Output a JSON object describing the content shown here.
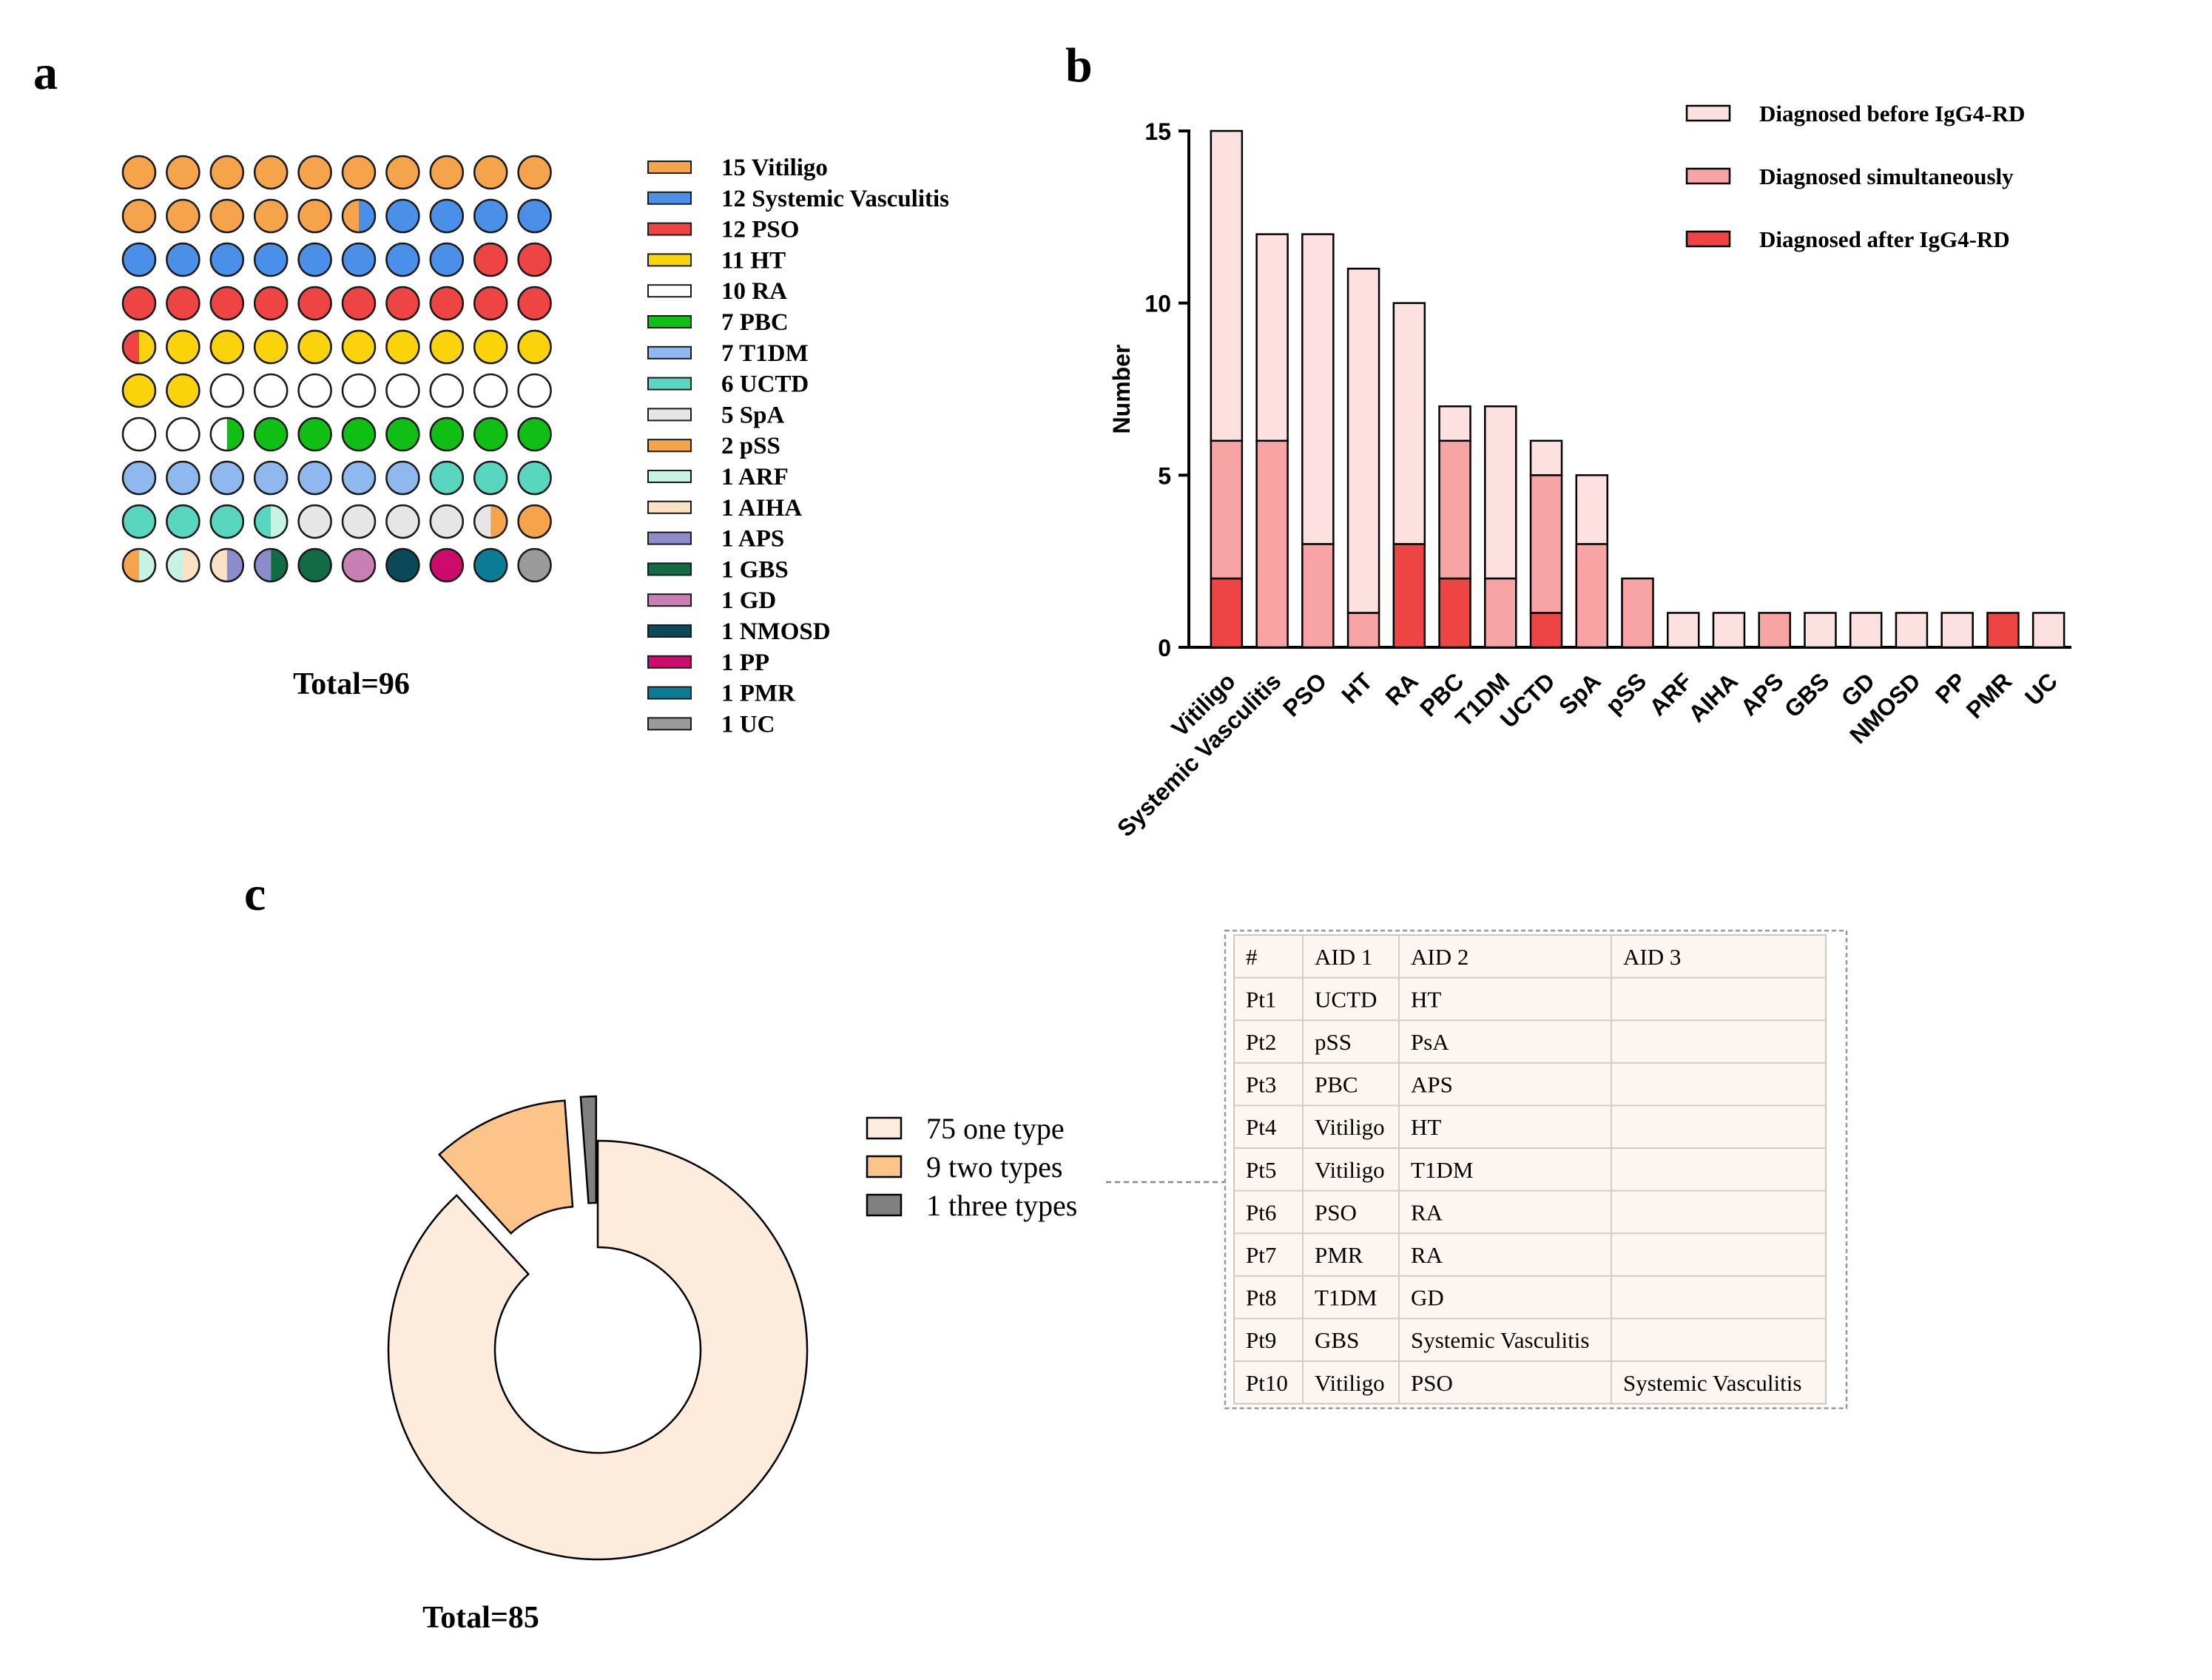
{
  "panels": {
    "a": {
      "label": "a",
      "total_label": "Total=96",
      "legend": [
        {
          "text": "15 Vitiligo",
          "color": "#f6a44c"
        },
        {
          "text": "12 Systemic Vasculitis",
          "color": "#4a90e8"
        },
        {
          "text": "12 PSO",
          "color": "#ee4444"
        },
        {
          "text": "11 HT",
          "color": "#fbd30a"
        },
        {
          "text": "10 RA",
          "color": "#ffffff"
        },
        {
          "text": "7 PBC",
          "color": "#0fbf14"
        },
        {
          "text": "7 T1DM",
          "color": "#8fb8ef"
        },
        {
          "text": "6 UCTD",
          "color": "#58d6bf"
        },
        {
          "text": "5 SpA",
          "color": "#e6e6e6"
        },
        {
          "text": "2 pSS",
          "color": "#f6a44c"
        },
        {
          "text": "1 ARF",
          "color": "#c7f3e3"
        },
        {
          "text": "1 AIHA",
          "color": "#fbe2c4"
        },
        {
          "text": "1 APS",
          "color": "#8c8ccc"
        },
        {
          "text": "1 GBS",
          "color": "#116b45"
        },
        {
          "text": "1 GD",
          "color": "#c880b4"
        },
        {
          "text": "1 NMOSD",
          "color": "#0b4858"
        },
        {
          "text": "1 PP",
          "color": "#cc0b6c"
        },
        {
          "text": "1 PMR",
          "color": "#0a7c94"
        },
        {
          "text": "1 UC",
          "color": "#9a9a9a"
        }
      ],
      "grid": [
        [
          [
            "#f6a44c"
          ],
          [
            "#f6a44c"
          ],
          [
            "#f6a44c"
          ],
          [
            "#f6a44c"
          ],
          [
            "#f6a44c"
          ],
          [
            "#f6a44c"
          ],
          [
            "#f6a44c"
          ],
          [
            "#f6a44c"
          ],
          [
            "#f6a44c"
          ],
          [
            "#f6a44c"
          ]
        ],
        [
          [
            "#f6a44c"
          ],
          [
            "#f6a44c"
          ],
          [
            "#f6a44c"
          ],
          [
            "#f6a44c"
          ],
          [
            "#f6a44c"
          ],
          [
            "#f6a44c",
            "#4a90e8"
          ],
          [
            "#4a90e8"
          ],
          [
            "#4a90e8"
          ],
          [
            "#4a90e8"
          ],
          [
            "#4a90e8"
          ]
        ],
        [
          [
            "#4a90e8"
          ],
          [
            "#4a90e8"
          ],
          [
            "#4a90e8"
          ],
          [
            "#4a90e8"
          ],
          [
            "#4a90e8"
          ],
          [
            "#4a90e8"
          ],
          [
            "#4a90e8"
          ],
          [
            "#4a90e8"
          ],
          [
            "#ee4444"
          ],
          [
            "#ee4444"
          ]
        ],
        [
          [
            "#ee4444"
          ],
          [
            "#ee4444"
          ],
          [
            "#ee4444"
          ],
          [
            "#ee4444"
          ],
          [
            "#ee4444"
          ],
          [
            "#ee4444"
          ],
          [
            "#ee4444"
          ],
          [
            "#ee4444"
          ],
          [
            "#ee4444"
          ],
          [
            "#ee4444"
          ]
        ],
        [
          [
            "#ee4444",
            "#fbd30a"
          ],
          [
            "#fbd30a"
          ],
          [
            "#fbd30a"
          ],
          [
            "#fbd30a"
          ],
          [
            "#fbd30a"
          ],
          [
            "#fbd30a"
          ],
          [
            "#fbd30a"
          ],
          [
            "#fbd30a"
          ],
          [
            "#fbd30a"
          ],
          [
            "#fbd30a"
          ]
        ],
        [
          [
            "#fbd30a"
          ],
          [
            "#fbd30a"
          ],
          [
            "#ffffff"
          ],
          [
            "#ffffff"
          ],
          [
            "#ffffff"
          ],
          [
            "#ffffff"
          ],
          [
            "#ffffff"
          ],
          [
            "#ffffff"
          ],
          [
            "#ffffff"
          ],
          [
            "#ffffff"
          ]
        ],
        [
          [
            "#ffffff"
          ],
          [
            "#ffffff"
          ],
          [
            "#ffffff",
            "#0fbf14"
          ],
          [
            "#0fbf14"
          ],
          [
            "#0fbf14"
          ],
          [
            "#0fbf14"
          ],
          [
            "#0fbf14"
          ],
          [
            "#0fbf14"
          ],
          [
            "#0fbf14"
          ],
          [
            "#0fbf14"
          ]
        ],
        [
          [
            "#8fb8ef"
          ],
          [
            "#8fb8ef"
          ],
          [
            "#8fb8ef"
          ],
          [
            "#8fb8ef"
          ],
          [
            "#8fb8ef"
          ],
          [
            "#8fb8ef"
          ],
          [
            "#8fb8ef"
          ],
          [
            "#58d6bf"
          ],
          [
            "#58d6bf"
          ],
          [
            "#58d6bf"
          ]
        ],
        [
          [
            "#58d6bf"
          ],
          [
            "#58d6bf"
          ],
          [
            "#58d6bf"
          ],
          [
            "#58d6bf",
            "#c7f3e3"
          ],
          [
            "#e6e6e6"
          ],
          [
            "#e6e6e6"
          ],
          [
            "#e6e6e6"
          ],
          [
            "#e6e6e6"
          ],
          [
            "#e6e6e6",
            "#f6a44c"
          ],
          [
            "#f6a44c"
          ]
        ],
        [
          [
            "#f6a44c",
            "#c7f3e3"
          ],
          [
            "#c7f3e3",
            "#fbe2c4"
          ],
          [
            "#fbe2c4",
            "#8c8ccc"
          ],
          [
            "#8c8ccc",
            "#116b45"
          ],
          [
            "#116b45"
          ],
          [
            "#c880b4"
          ],
          [
            "#0b4858"
          ],
          [
            "#cc0b6c"
          ],
          [
            "#0a7c94"
          ],
          [
            "#9a9a9a"
          ]
        ]
      ]
    },
    "b": {
      "label": "b",
      "colors": {
        "before": "#fde1e1",
        "simultaneous": "#f9a4a4",
        "after": "#ee4444"
      }
    },
    "c": {
      "label": "c",
      "total_label": "Total=85",
      "donut": [
        {
          "label": "75 one type",
          "value": 75,
          "color": "#fdebdb"
        },
        {
          "label": "9 two types",
          "value": 9,
          "color": "#fcc488"
        },
        {
          "label": "1 three types",
          "value": 1,
          "color": "#808080"
        }
      ],
      "table": {
        "headers": [
          "#",
          "AID 1",
          "AID 2",
          "AID 3"
        ],
        "rows": [
          [
            "Pt1",
            "UCTD",
            "HT",
            ""
          ],
          [
            "Pt2",
            "pSS",
            "PsA",
            ""
          ],
          [
            "Pt3",
            "PBC",
            "APS",
            ""
          ],
          [
            "Pt4",
            "Vitiligo",
            "HT",
            ""
          ],
          [
            "Pt5",
            "Vitiligo",
            "T1DM",
            ""
          ],
          [
            "Pt6",
            "PSO",
            "RA",
            ""
          ],
          [
            "Pt7",
            "PMR",
            "RA",
            ""
          ],
          [
            "Pt8",
            "T1DM",
            "GD",
            ""
          ],
          [
            "Pt9",
            "GBS",
            "Systemic Vasculitis",
            ""
          ],
          [
            "Pt10",
            "Vitiligo",
            "PSO",
            "Systemic Vasculitis"
          ]
        ]
      }
    }
  },
  "chart_data": [
    {
      "type": "waffle",
      "panel": "a",
      "categories": [
        "Vitiligo",
        "Systemic Vasculitis",
        "PSO",
        "HT",
        "RA",
        "PBC",
        "T1DM",
        "UCTD",
        "SpA",
        "pSS",
        "ARF",
        "AIHA",
        "APS",
        "GBS",
        "GD",
        "NMOSD",
        "PP",
        "PMR",
        "UC"
      ],
      "values": [
        15,
        12,
        12,
        11,
        10,
        7,
        7,
        6,
        5,
        2,
        1,
        1,
        1,
        1,
        1,
        1,
        1,
        1,
        1
      ],
      "total": 96
    },
    {
      "type": "bar",
      "panel": "b",
      "stacked": true,
      "ylabel": "Number",
      "ylim": [
        0,
        15
      ],
      "yticks": [
        0,
        5,
        10,
        15
      ],
      "legend_position": "top-right",
      "categories": [
        "Vitiligo",
        "Systemic Vasculitis",
        "PSO",
        "HT",
        "RA",
        "PBC",
        "T1DM",
        "UCTD",
        "SpA",
        "pSS",
        "ARF",
        "AIHA",
        "APS",
        "GBS",
        "GD",
        "NMOSD",
        "PP",
        "PMR",
        "UC"
      ],
      "series": [
        {
          "name": "Diagnosed after IgG4-RD",
          "values": [
            2,
            0,
            0,
            0,
            3,
            2,
            0,
            1,
            0,
            0,
            0,
            0,
            0,
            0,
            0,
            0,
            0,
            1,
            0
          ]
        },
        {
          "name": "Diagnosed simultaneously",
          "values": [
            4,
            6,
            3,
            1,
            0,
            4,
            2,
            4,
            3,
            2,
            0,
            0,
            1,
            0,
            0,
            0,
            0,
            0,
            0
          ]
        },
        {
          "name": "Diagnosed before IgG4-RD",
          "values": [
            9,
            6,
            9,
            10,
            7,
            1,
            5,
            1,
            2,
            0,
            1,
            1,
            0,
            1,
            1,
            1,
            1,
            0,
            1
          ]
        }
      ]
    },
    {
      "type": "pie",
      "panel": "c",
      "donut": true,
      "categories": [
        "75 one type",
        "9 two types",
        "1 three types"
      ],
      "values": [
        75,
        9,
        1
      ],
      "total": 85
    }
  ]
}
